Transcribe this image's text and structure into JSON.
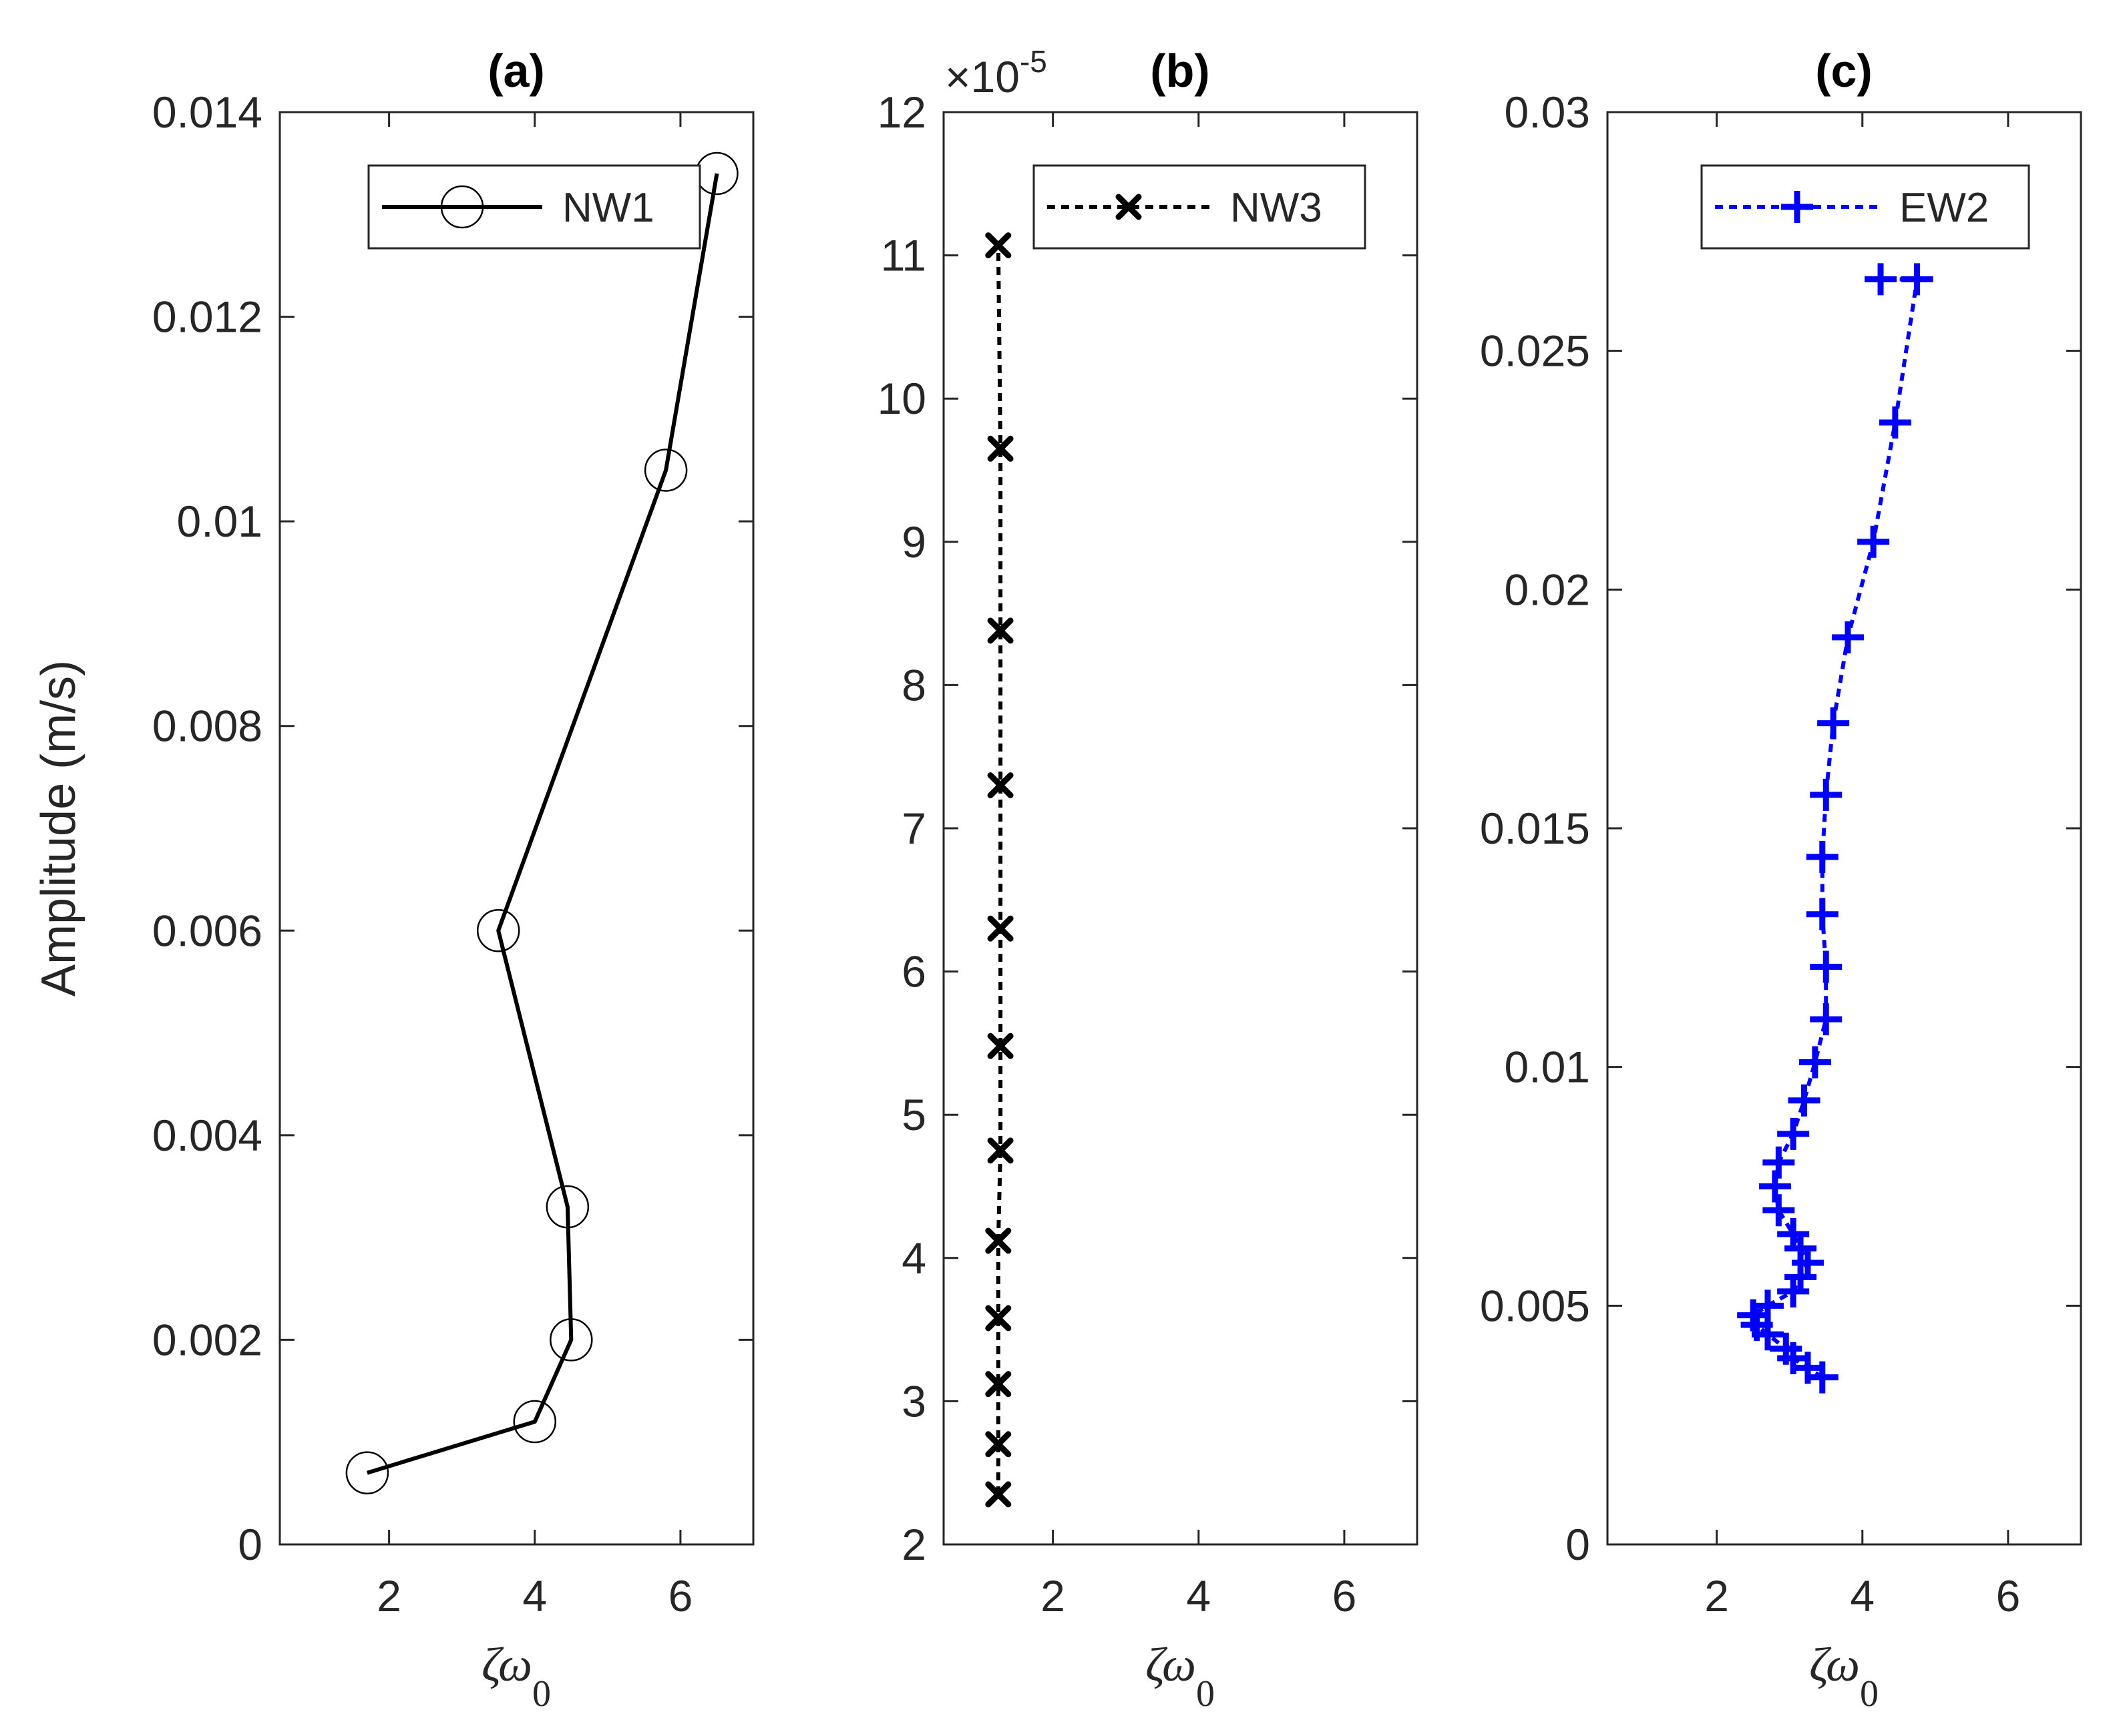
{
  "chart_data": [
    {
      "type": "line",
      "title": "(a)",
      "xlabel": "ζω",
      "xlabel_subscript": "0",
      "ylabel": "Amplitude (m/s)",
      "xlim": [
        0.5,
        7
      ],
      "ylim": [
        0,
        0.014
      ],
      "xticks": [
        2,
        4,
        6
      ],
      "xtick_labels": [
        "2",
        "4",
        "6"
      ],
      "yticks": [
        0,
        0.002,
        0.004,
        0.006,
        0.008,
        0.01,
        0.012,
        0.014
      ],
      "ytick_labels": [
        "0",
        "0.002",
        "0.004",
        "0.006",
        "0.008",
        "0.01",
        "0.012",
        "0.014"
      ],
      "y_exponent_label": "",
      "y_exponent_power": "",
      "legend_position": "top-right",
      "series": [
        {
          "name": "NW1",
          "color": "#000000",
          "line_style": "solid",
          "marker": "circle",
          "x": [
            1.7,
            4.0,
            4.5,
            4.45,
            3.5,
            5.8,
            6.5
          ],
          "y": [
            0.0007,
            0.0012,
            0.002,
            0.0033,
            0.006,
            0.0105,
            0.0134
          ]
        }
      ]
    },
    {
      "type": "line",
      "title": "(b)",
      "xlabel": "ζω",
      "xlabel_subscript": "0",
      "ylabel": "",
      "xlim": [
        0.5,
        7
      ],
      "ylim": [
        2,
        12
      ],
      "xticks": [
        2,
        4,
        6
      ],
      "xtick_labels": [
        "2",
        "4",
        "6"
      ],
      "yticks": [
        2,
        3,
        4,
        5,
        6,
        7,
        8,
        9,
        10,
        11,
        12
      ],
      "ytick_labels": [
        "2",
        "3",
        "4",
        "5",
        "6",
        "7",
        "8",
        "9",
        "10",
        "11",
        "12"
      ],
      "y_exponent_label": "×10",
      "y_exponent_power": "-5",
      "legend_position": "top-right",
      "series": [
        {
          "name": "NW3",
          "color": "#000000",
          "line_style": "dotted",
          "marker": "x",
          "x": [
            1.25,
            1.25,
            1.25,
            1.25,
            1.25,
            1.28,
            1.28,
            1.28,
            1.28,
            1.28,
            1.28,
            1.25
          ],
          "y": [
            2.35,
            2.7,
            3.12,
            3.58,
            4.12,
            4.75,
            5.48,
            6.3,
            7.3,
            8.38,
            9.65,
            11.07
          ]
        }
      ]
    },
    {
      "type": "line",
      "title": "(c)",
      "xlabel": "ζω",
      "xlabel_subscript": "0",
      "ylabel": "",
      "xlim": [
        0.5,
        7
      ],
      "ylim": [
        0,
        0.03
      ],
      "xticks": [
        2,
        4,
        6
      ],
      "xtick_labels": [
        "2",
        "4",
        "6"
      ],
      "yticks": [
        0,
        0.005,
        0.01,
        0.015,
        0.02,
        0.025,
        0.03
      ],
      "ytick_labels": [
        "0",
        "0.005",
        "0.01",
        "0.015",
        "0.02",
        "0.025",
        "0.03"
      ],
      "y_exponent_label": "",
      "y_exponent_power": "",
      "legend_position": "top-right",
      "series": [
        {
          "name": "EW2",
          "color": "#0000ff",
          "line_style": "dotted",
          "marker": "plus",
          "x": [
            3.45,
            3.25,
            3.05,
            2.95,
            2.7,
            2.55,
            2.5,
            2.7,
            3.05,
            3.15,
            3.25,
            3.15,
            3.05,
            2.85,
            2.8,
            2.85,
            3.05,
            3.2,
            3.35,
            3.5,
            3.5,
            3.45,
            3.45,
            3.5,
            3.6,
            3.8,
            4.15,
            4.45,
            4.75,
            4.25
          ],
          "y": [
            0.0035,
            0.0037,
            0.0039,
            0.0041,
            0.0044,
            0.0046,
            0.0048,
            0.005,
            0.0053,
            0.0056,
            0.0059,
            0.0062,
            0.0065,
            0.007,
            0.0075,
            0.008,
            0.0086,
            0.0093,
            0.0101,
            0.011,
            0.0121,
            0.0132,
            0.0144,
            0.0157,
            0.0172,
            0.019,
            0.021,
            0.0235,
            0.0265,
            0.0265
          ]
        }
      ]
    }
  ]
}
